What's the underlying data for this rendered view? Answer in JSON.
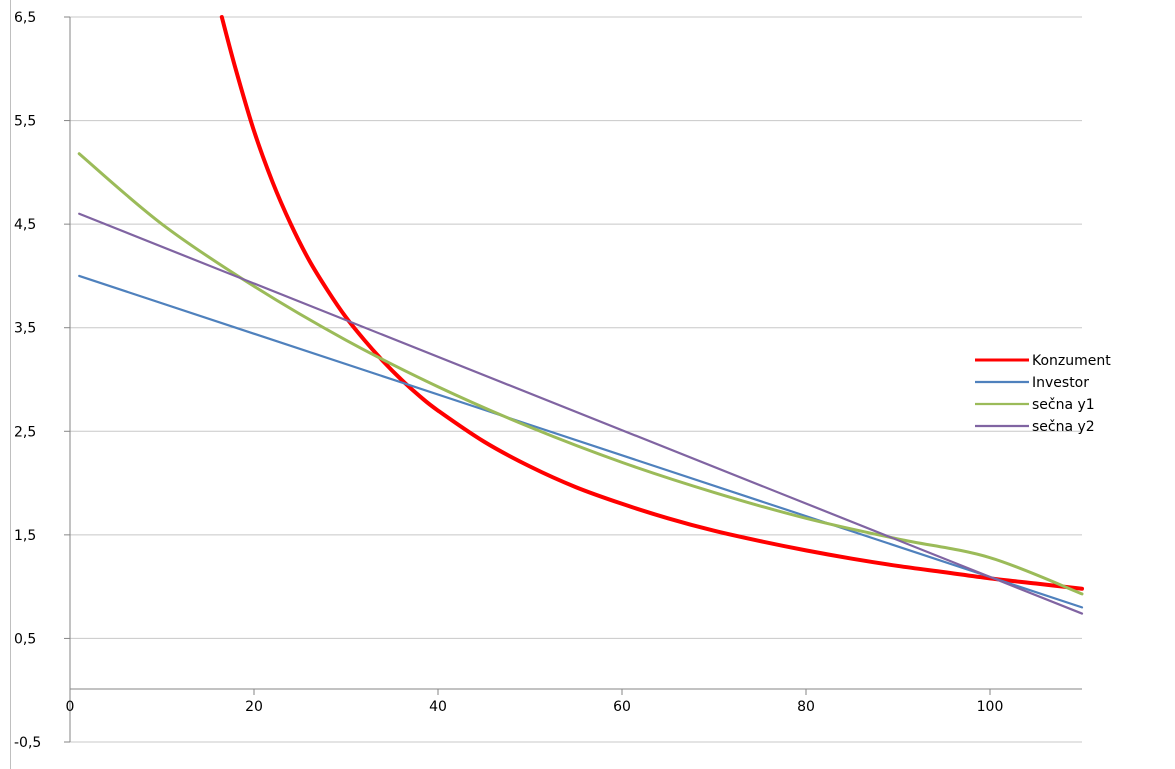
{
  "chart_data": {
    "type": "line",
    "title": "",
    "xlabel": "",
    "ylabel": "",
    "xlim": [
      0,
      110
    ],
    "ylim": [
      -0.5,
      6.5
    ],
    "x_ticks": [
      0,
      20,
      40,
      60,
      80,
      100
    ],
    "x_tick_labels": [
      "0",
      "20",
      "40",
      "60",
      "80",
      "100"
    ],
    "y_ticks": [
      6.5,
      5.5,
      4.5,
      3.5,
      2.5,
      1.5,
      0.5,
      -0.5
    ],
    "y_tick_labels": [
      "6,5",
      "5,5",
      "4,5",
      "3,5",
      "2,5",
      "1,5",
      "0,5",
      "-0,5"
    ],
    "grid": "horizontal",
    "legend_position": "right",
    "series": [
      {
        "name": "Konzument",
        "color": "#ff0000",
        "x": [
          16.5,
          18,
          20,
          22,
          24,
          26,
          28,
          30,
          32,
          34,
          36,
          38,
          40,
          45,
          50,
          55,
          60,
          65,
          70,
          75,
          80,
          85,
          90,
          95,
          100,
          105,
          110
        ],
        "y": [
          6.5,
          6.0,
          5.4,
          4.91,
          4.5,
          4.15,
          3.86,
          3.6,
          3.38,
          3.18,
          3.0,
          2.84,
          2.7,
          2.4,
          2.16,
          1.96,
          1.8,
          1.66,
          1.54,
          1.44,
          1.35,
          1.27,
          1.2,
          1.14,
          1.08,
          1.03,
          0.98
        ]
      },
      {
        "name": "Investor",
        "color": "#4f81bd",
        "x": [
          1,
          110
        ],
        "y": [
          4.0,
          0.8
        ]
      },
      {
        "name": "sečna y1",
        "color": "#9bbb59",
        "x": [
          1,
          10,
          20,
          30,
          40,
          50,
          60,
          70,
          80,
          90,
          100,
          110
        ],
        "y": [
          5.18,
          4.5,
          3.9,
          3.38,
          2.93,
          2.54,
          2.2,
          1.91,
          1.66,
          1.46,
          1.28,
          0.93
        ]
      },
      {
        "name": "sečna y2",
        "color": "#8064a2",
        "x": [
          1,
          110
        ],
        "y": [
          4.6,
          0.74
        ]
      }
    ]
  }
}
